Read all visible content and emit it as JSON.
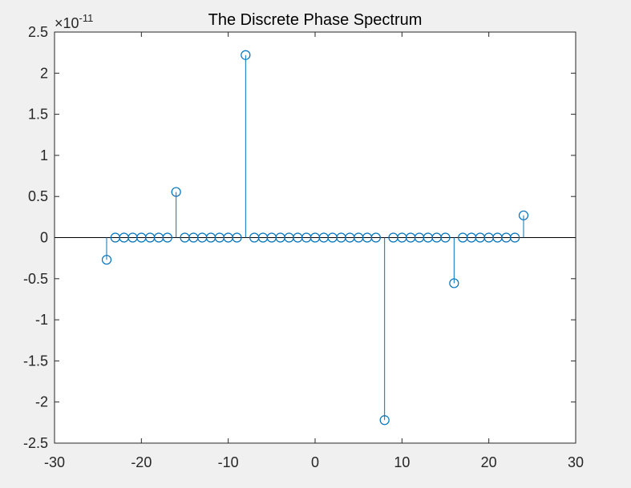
{
  "chart_data": {
    "type": "stem",
    "title": "The Discrete Phase Spectrum",
    "xlabel": "",
    "ylabel": "",
    "xlim": [
      -30,
      30
    ],
    "ylim": [
      -2.5,
      2.5
    ],
    "y_exponent_label": "×10",
    "y_exponent_power": "-11",
    "xticks": [
      -30,
      -20,
      -10,
      0,
      10,
      20,
      30
    ],
    "yticks": [
      -2.5,
      -2,
      -1.5,
      -1,
      -0.5,
      0,
      0.5,
      1,
      1.5,
      2,
      2.5
    ],
    "x": [
      -24,
      -23,
      -22,
      -21,
      -20,
      -19,
      -18,
      -17,
      -16,
      -15,
      -14,
      -13,
      -12,
      -11,
      -10,
      -9,
      -8,
      -7,
      -6,
      -5,
      -4,
      -3,
      -2,
      -1,
      0,
      1,
      2,
      3,
      4,
      5,
      6,
      7,
      8,
      9,
      10,
      11,
      12,
      13,
      14,
      15,
      16,
      17,
      18,
      19,
      20,
      21,
      22,
      23,
      24
    ],
    "y": [
      -0.27,
      0,
      0,
      0,
      0,
      0,
      0,
      0,
      0.555,
      0,
      0,
      0,
      0,
      0,
      0,
      0,
      2.22,
      0,
      0,
      0,
      0,
      0,
      0,
      0,
      0,
      0,
      0,
      0,
      0,
      0,
      0,
      0,
      -2.22,
      0,
      0,
      0,
      0,
      0,
      0,
      0,
      -0.555,
      0,
      0,
      0,
      0,
      0,
      0,
      0,
      0.27
    ],
    "baseline": 0,
    "grid": false,
    "colors": {
      "stem": "#0072bd",
      "axes": "#262626",
      "plot_bg": "#ffffff",
      "figure_bg": "#f0f0f0"
    }
  }
}
